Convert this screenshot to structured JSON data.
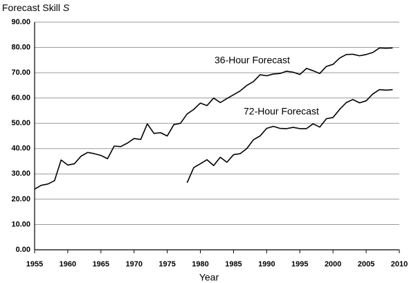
{
  "chart_data": {
    "type": "line",
    "ylabel": "Forecast Skill",
    "ylabel_symbol": "S",
    "xlabel": "Year",
    "annotations": [
      "36-Hour Forecast",
      "72-Hour Forecast"
    ],
    "x": [
      1955,
      1956,
      1957,
      1958,
      1959,
      1960,
      1961,
      1962,
      1963,
      1964,
      1965,
      1966,
      1967,
      1968,
      1969,
      1970,
      1971,
      1972,
      1973,
      1974,
      1975,
      1976,
      1977,
      1978,
      1979,
      1980,
      1981,
      1982,
      1983,
      1984,
      1985,
      1986,
      1987,
      1988,
      1989,
      1990,
      1991,
      1992,
      1993,
      1994,
      1995,
      1996,
      1997,
      1998,
      1999,
      2000,
      2001,
      2002,
      2003,
      2004,
      2005,
      2006,
      2007,
      2008,
      2009
    ],
    "series": [
      {
        "name": "36-Hour Forecast",
        "color": "#000000",
        "values": [
          24.0,
          25.5,
          26.0,
          27.3,
          35.5,
          33.5,
          34.0,
          37.0,
          38.5,
          38.0,
          37.3,
          36.0,
          41.0,
          40.8,
          42.2,
          44.0,
          43.6,
          49.8,
          46.0,
          46.3,
          45.0,
          49.5,
          50.0,
          53.7,
          55.5,
          58.0,
          57.0,
          60.0,
          58.2,
          59.8,
          61.3,
          62.8,
          65.0,
          66.5,
          69.2,
          68.8,
          69.5,
          69.7,
          70.6,
          70.2,
          69.3,
          71.7,
          70.8,
          69.7,
          72.5,
          73.3,
          75.8,
          77.2,
          77.3,
          76.7,
          77.2,
          78.0,
          79.8,
          79.7,
          79.8
        ]
      },
      {
        "name": "72-Hour Forecast",
        "color": "#000000",
        "values": [
          null,
          null,
          null,
          null,
          null,
          null,
          null,
          null,
          null,
          null,
          null,
          null,
          null,
          null,
          null,
          null,
          null,
          null,
          null,
          null,
          null,
          null,
          null,
          26.5,
          32.5,
          34.0,
          35.6,
          33.3,
          36.6,
          34.6,
          37.6,
          38.0,
          40.0,
          43.5,
          45.0,
          48.0,
          48.8,
          48.0,
          47.9,
          48.4,
          47.9,
          47.9,
          49.8,
          48.5,
          51.8,
          52.3,
          55.5,
          58.2,
          59.4,
          58.1,
          58.9,
          61.6,
          63.3,
          63.1,
          63.3
        ]
      }
    ],
    "xlim": [
      1955,
      2010
    ],
    "xticks": [
      1955,
      1960,
      1965,
      1970,
      1975,
      1980,
      1985,
      1990,
      1995,
      2000,
      2005,
      2010
    ],
    "ylim": [
      0,
      90
    ],
    "yticks": [
      {
        "value": 0,
        "label": "0.00"
      },
      {
        "value": 10,
        "label": "10.00"
      },
      {
        "value": 20,
        "label": "20.00"
      },
      {
        "value": 30,
        "label": "30.00"
      },
      {
        "value": 40,
        "label": "40.00"
      },
      {
        "value": 50,
        "label": "50.00"
      },
      {
        "value": 60,
        "label": "60.00"
      },
      {
        "value": 70,
        "label": "70.00"
      },
      {
        "value": 80,
        "label": "80.00"
      },
      {
        "value": 90,
        "label": "90.00"
      }
    ],
    "grid": true
  }
}
